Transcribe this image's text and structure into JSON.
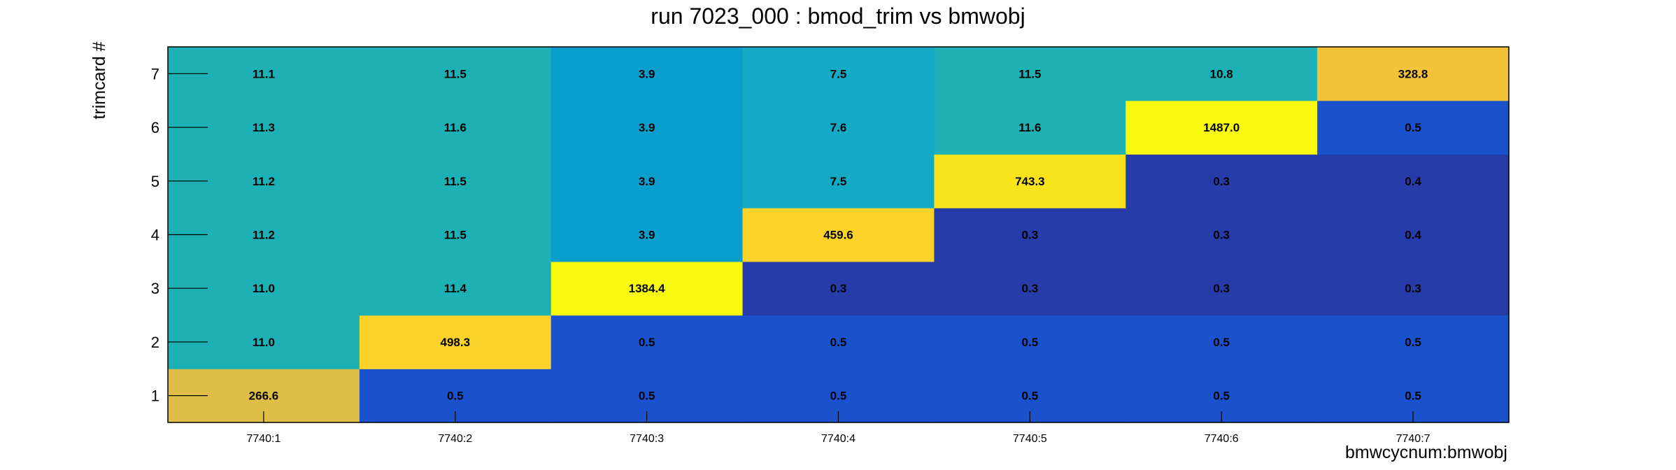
{
  "chart_data": {
    "type": "heatmap",
    "title": "run 7023_000 : bmod_trim vs bmwobj",
    "xlabel": "bmwcycnum:bmwobj",
    "ylabel": "trimcard #",
    "x_categories": [
      "7740:1",
      "7740:2",
      "7740:3",
      "7740:4",
      "7740:5",
      "7740:6",
      "7740:7"
    ],
    "y_categories": [
      "1",
      "2",
      "3",
      "4",
      "5",
      "6",
      "7"
    ],
    "values": [
      [
        266.6,
        0.5,
        0.5,
        0.5,
        0.5,
        0.5,
        0.5
      ],
      [
        11.0,
        498.3,
        0.5,
        0.5,
        0.5,
        0.5,
        0.5
      ],
      [
        11.0,
        11.4,
        1384.4,
        0.3,
        0.3,
        0.3,
        0.3
      ],
      [
        11.2,
        11.5,
        3.9,
        459.6,
        0.3,
        0.3,
        0.4
      ],
      [
        11.2,
        11.5,
        3.9,
        7.5,
        743.3,
        0.3,
        0.4
      ],
      [
        11.3,
        11.6,
        3.9,
        7.6,
        11.6,
        1487.0,
        0.5
      ],
      [
        11.1,
        11.5,
        3.9,
        7.5,
        11.5,
        10.8,
        328.8
      ]
    ],
    "labels": [
      [
        "266.6",
        "0.5",
        "0.5",
        "0.5",
        "0.5",
        "0.5",
        "0.5"
      ],
      [
        "11.0",
        "498.3",
        "0.5",
        "0.5",
        "0.5",
        "0.5",
        "0.5"
      ],
      [
        "11.0",
        "11.4",
        "1384.4",
        "0.3",
        "0.3",
        "0.3",
        "0.3"
      ],
      [
        "11.2",
        "11.5",
        "3.9",
        "459.6",
        "0.3",
        "0.3",
        "0.4"
      ],
      [
        "11.2",
        "11.5",
        "3.9",
        "7.5",
        "743.3",
        "0.3",
        "0.4"
      ],
      [
        "11.3",
        "11.6",
        "3.9",
        "7.6",
        "11.6",
        "1487.0",
        "0.5"
      ],
      [
        "11.1",
        "11.5",
        "3.9",
        "7.5",
        "11.5",
        "10.8",
        "328.8"
      ]
    ],
    "colors": [
      [
        "#e0bd47",
        "#1952cc",
        "#1952cc",
        "#1952cc",
        "#1952cc",
        "#1952cc",
        "#1952cc"
      ],
      [
        "#1db0b5",
        "#fad22a",
        "#1952cc",
        "#1952cc",
        "#1952cc",
        "#1952cc",
        "#1952cc"
      ],
      [
        "#1db0b5",
        "#1db0b5",
        "#f8fa0d",
        "#263ca8",
        "#263ca8",
        "#263ca8",
        "#263ca8"
      ],
      [
        "#1db0b5",
        "#1db0b5",
        "#0a9ecd",
        "#fad22a",
        "#263ca8",
        "#263ca8",
        "#263ca8"
      ],
      [
        "#1db0b5",
        "#1db0b5",
        "#0a9ecd",
        "#14a9c4",
        "#f9e41c",
        "#263ca8",
        "#263ca8"
      ],
      [
        "#1db0b5",
        "#1db0b5",
        "#0a9ecd",
        "#14a9c4",
        "#1db0b5",
        "#f8fa0d",
        "#1952cc"
      ],
      [
        "#1db0b5",
        "#1db0b5",
        "#0a9ecd",
        "#14a9c4",
        "#1db0b5",
        "#1db0b5",
        "#f2c23a"
      ]
    ],
    "grid": false,
    "legend": false
  }
}
